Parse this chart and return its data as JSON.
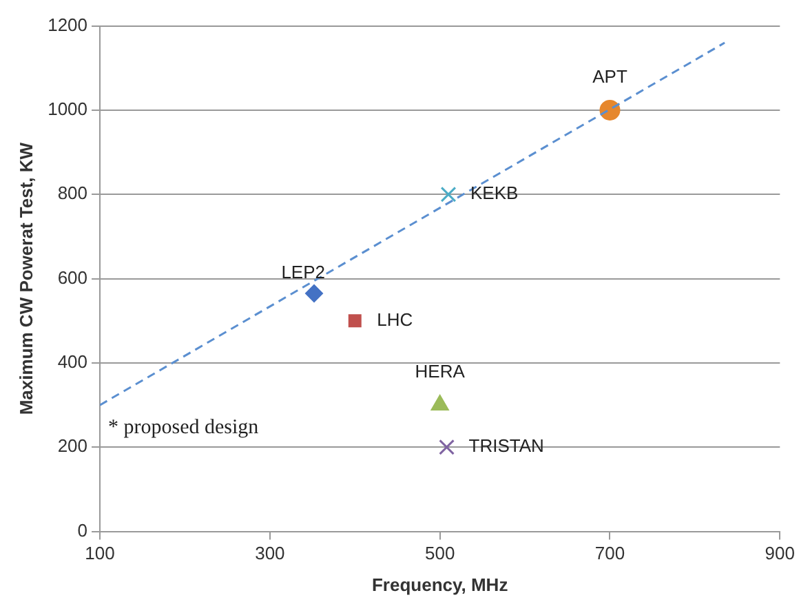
{
  "chart_data": {
    "type": "scatter",
    "xlabel": "Frequency, MHz",
    "ylabel": "Maximum CW Powerat Test, KW",
    "xlim": [
      100,
      900
    ],
    "xticks": [
      100,
      300,
      500,
      700,
      900
    ],
    "ylim": [
      0,
      1200
    ],
    "yticks": [
      0,
      200,
      400,
      600,
      800,
      1000,
      1200
    ],
    "grid": "y",
    "legend": false,
    "series": [
      {
        "type": "line",
        "color": "#5b8fd0",
        "line_style": "dashed",
        "marker": "none",
        "x": [
          100,
          835
        ],
        "values": [
          300,
          1160
        ]
      },
      {
        "name": "APT",
        "color": "#e6872d",
        "marker": "circle",
        "x": [
          700
        ],
        "values": [
          1000
        ]
      },
      {
        "name": "KEKB",
        "color": "#4bacc6",
        "marker": "cross",
        "x": [
          510
        ],
        "values": [
          800
        ]
      },
      {
        "name": "LEP2",
        "color": "#4472c4",
        "marker": "diamond",
        "x": [
          352
        ],
        "values": [
          565
        ]
      },
      {
        "name": "LHC",
        "color": "#c0504d",
        "marker": "square",
        "x": [
          400
        ],
        "values": [
          500
        ]
      },
      {
        "name": "HERA",
        "color": "#9bbb59",
        "marker": "triangle",
        "x": [
          500
        ],
        "values": [
          300
        ]
      },
      {
        "name": "TRISTAN",
        "color": "#8064a2",
        "marker": "cross",
        "x": [
          508
        ],
        "values": [
          200
        ]
      }
    ],
    "annotations": [
      "* proposed design"
    ]
  }
}
